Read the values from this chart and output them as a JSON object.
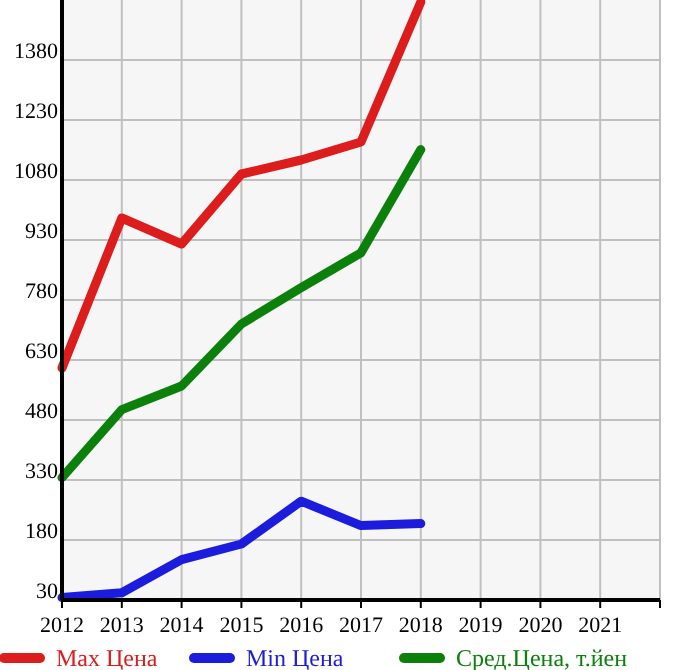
{
  "chart_data": {
    "type": "line",
    "x": [
      2012,
      2013,
      2014,
      2015,
      2016,
      2017,
      2018
    ],
    "series": [
      {
        "name": "Max Цена",
        "color": "#dd1c1c",
        "values": [
          610,
          985,
          920,
          1095,
          1130,
          1175,
          1525
        ]
      },
      {
        "name": "Min Цена",
        "color": "#1c1cdd",
        "values": [
          36,
          48,
          131,
          170,
          277,
          216,
          221
        ]
      },
      {
        "name": "Сред.Цена, т.йен",
        "color": "#0b800b",
        "values": [
          336,
          506,
          565,
          720,
          811,
          898,
          1156
        ]
      }
    ],
    "xlim": [
      2012,
      2022
    ],
    "xticks": [
      2012,
      2013,
      2014,
      2015,
      2016,
      2017,
      2018,
      2019,
      2020,
      2021,
      {
        "value": 2022,
        "label": null
      }
    ],
    "ylim": [
      30,
      1530
    ],
    "yticks": [
      30,
      180,
      330,
      480,
      630,
      780,
      930,
      1080,
      1230,
      1380
    ],
    "grid": true,
    "legend": "bottom",
    "marker": "none",
    "line_style": "solid"
  }
}
